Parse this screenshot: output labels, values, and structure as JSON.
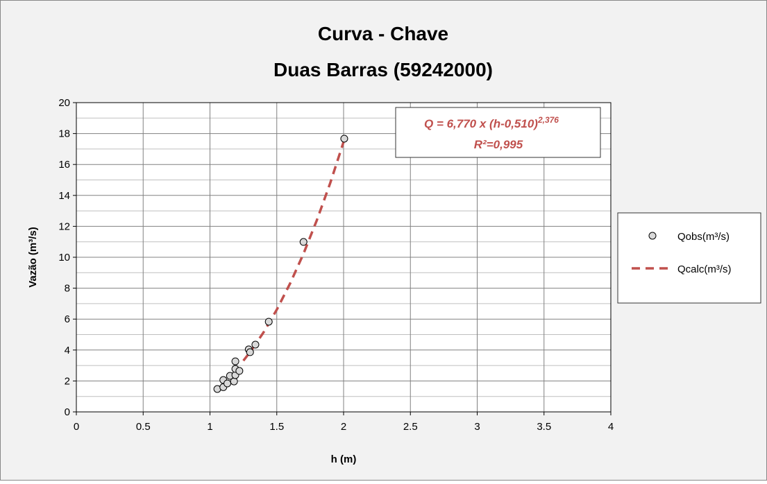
{
  "chart_data": {
    "type": "scatter",
    "title": [
      "Curva - Chave",
      "Duas Barras (59242000)"
    ],
    "x_label": "h (m)",
    "y_label": "Vazão (m³/s)",
    "xlim": [
      0,
      4
    ],
    "xticks": [
      0,
      0.5,
      1,
      1.5,
      2,
      2.5,
      3,
      3.5,
      4
    ],
    "ylim": [
      0,
      20
    ],
    "yticks": [
      0,
      2,
      4,
      6,
      8,
      10,
      12,
      14,
      16,
      18,
      20
    ],
    "y_minor_ticks": [
      1,
      3,
      5,
      7,
      9,
      11,
      13,
      15,
      17,
      19
    ],
    "grid": true,
    "legend": "right",
    "annotation": {
      "text": "Q = 6,770 x (h-0,510)",
      "exponent": "2,376",
      "r2": "R²=0,995",
      "color": "#c0504d"
    },
    "series": [
      {
        "name": "Qobs(m³/s)",
        "kind": "markers",
        "color": "#d9d9d9",
        "x": [
          1.055,
          1.1,
          1.1,
          1.13,
          1.15,
          1.18,
          1.19,
          1.19,
          1.19,
          1.22,
          1.29,
          1.3,
          1.34,
          1.44,
          1.7,
          2.005
        ],
        "values": [
          1.48,
          2.06,
          1.6,
          1.84,
          2.33,
          1.97,
          2.38,
          3.27,
          2.78,
          2.65,
          4.04,
          3.86,
          4.35,
          5.83,
          10.99,
          17.67
        ]
      },
      {
        "name": "Qcalc(m³/s)",
        "kind": "dashed-line",
        "color": "#c0504d",
        "x": [
          1.25,
          1.3,
          1.4,
          1.5,
          1.6,
          1.7,
          1.8,
          1.9,
          2.0
        ],
        "values": [
          3.31,
          3.87,
          5.13,
          6.61,
          8.31,
          10.23,
          12.4,
          14.8,
          17.46
        ]
      }
    ]
  }
}
